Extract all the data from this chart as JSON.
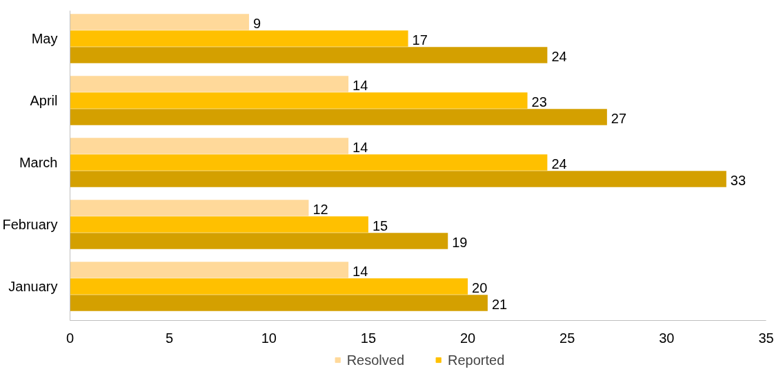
{
  "chart_data": {
    "type": "bar",
    "orientation": "horizontal",
    "categories": [
      "May",
      "April",
      "March",
      "February",
      "January"
    ],
    "series": [
      {
        "name": "Resolved",
        "color": "#ffd99a",
        "values": [
          9,
          14,
          14,
          12,
          14
        ]
      },
      {
        "name": "Reported",
        "color": "#ffc000",
        "values": [
          17,
          23,
          24,
          15,
          20
        ]
      },
      {
        "color": "#d4a000",
        "values": [
          24,
          27,
          33,
          19,
          21
        ]
      }
    ],
    "xlim": [
      0,
      35
    ],
    "xticks": [
      0,
      5,
      10,
      15,
      20,
      25,
      30,
      35
    ],
    "data_labels": true,
    "grid": false,
    "legend": "bottom"
  }
}
